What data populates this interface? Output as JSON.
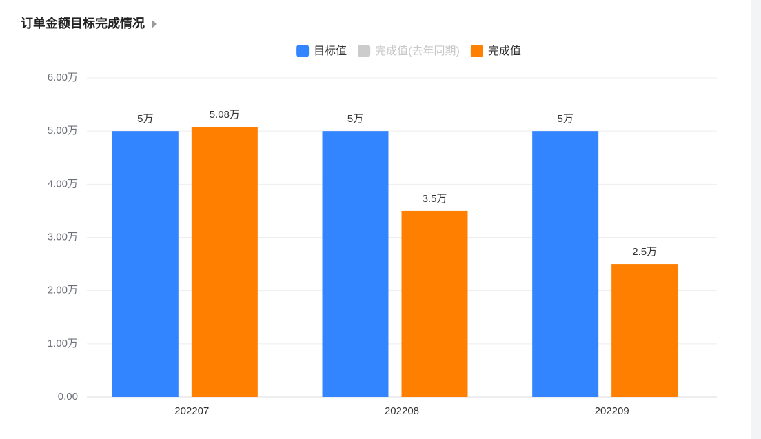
{
  "chart_data": {
    "type": "bar",
    "title": "订单金额目标完成情况",
    "categories": [
      "202207",
      "202208",
      "202209"
    ],
    "series": [
      {
        "name": "目标值",
        "color": "#3385ff",
        "values": [
          5,
          5,
          5
        ],
        "value_labels": [
          "5万",
          "5万",
          "5万"
        ]
      },
      {
        "name": "完成值(去年同期)",
        "color": "#cccccc",
        "hidden": true,
        "values": [
          null,
          null,
          null
        ]
      },
      {
        "name": "完成值",
        "color": "#ff8000",
        "values": [
          5.08,
          3.5,
          2.5
        ],
        "value_labels": [
          "5.08万",
          "3.5万",
          "2.5万"
        ]
      }
    ],
    "ylim": [
      0,
      6
    ],
    "yticks": [
      {
        "value": 0,
        "label": "0.00"
      },
      {
        "value": 1,
        "label": "1.00万"
      },
      {
        "value": 2,
        "label": "2.00万"
      },
      {
        "value": 3,
        "label": "3.00万"
      },
      {
        "value": 4,
        "label": "4.00万"
      },
      {
        "value": 5,
        "label": "5.00万"
      },
      {
        "value": 6,
        "label": "6.00万"
      }
    ],
    "grid": true,
    "legend": "top"
  }
}
